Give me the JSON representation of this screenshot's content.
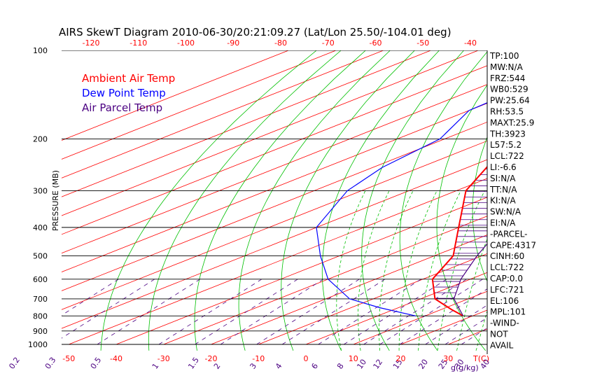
{
  "chart_data": {
    "type": "line",
    "subtype": "skew-t log-p",
    "title": "AIRS SkewT Diagram 2010-06-30/20:21:09.27 (Lat/Lon 25.50/-104.01 deg)",
    "ylabel": "PRESSURE (MB)",
    "xlabel": "T(C)",
    "mixing_ratio_unit": "g(g/kg)",
    "legend": [
      "Ambient Air Temp",
      "Dew Point Temp",
      "Air Parcel Temp"
    ],
    "legend_colors": [
      "#ff0000",
      "#0000ff",
      "#4b0082"
    ],
    "legend_position": "top-left",
    "pressure_levels": [
      100,
      200,
      300,
      400,
      500,
      600,
      700,
      800,
      900,
      1000
    ],
    "bottom_temp_ticks": [
      -50,
      -40,
      -30,
      -20,
      -10,
      0,
      10,
      20,
      30
    ],
    "top_temp_ticks": [
      -120,
      -110,
      -100,
      -90,
      -80,
      -70,
      -60,
      -50,
      -40
    ],
    "mixing_ratio_labels": [
      "0.1",
      "0.2",
      "0.3",
      "0.5",
      "1",
      "1.5",
      "2",
      "3",
      "4",
      "6",
      "8",
      "10",
      "12",
      "15",
      "20",
      "25",
      "30",
      "40"
    ],
    "series": [
      {
        "name": "Ambient Air Temp",
        "pressure": [
          100,
          130,
          160,
          200,
          250,
          300,
          400,
          500,
          600,
          700,
          760,
          800
        ],
        "temp": [
          -79,
          -80,
          -79,
          -66,
          -56,
          -48,
          -30,
          -16,
          -8,
          3,
          12,
          18
        ]
      },
      {
        "name": "Dew Point Temp",
        "pressure": [
          100,
          160,
          200,
          250,
          300,
          400,
          500,
          600,
          700,
          750,
          800
        ],
        "temp": [
          -92,
          -90,
          -81,
          -78,
          -73,
          -60,
          -44,
          -30,
          -15,
          -4,
          8
        ]
      },
      {
        "name": "Air Parcel Temp",
        "pressure": [
          100,
          130,
          160,
          200,
          250,
          300,
          400,
          500,
          600,
          700,
          800
        ],
        "temp": [
          -81,
          -70,
          -60,
          -51,
          -42,
          -33,
          -21,
          -11,
          -2,
          7,
          18
        ]
      }
    ]
  },
  "indices": [
    "TP:100",
    "MW:N/A",
    "FRZ:544",
    "WB0:529",
    "PW:25.64",
    "RH:53.5",
    "MAXT:25.9",
    "TH:3923",
    "L57:5.2",
    "LCL:722",
    "LI:-6.6",
    "SI:N/A",
    "TT:N/A",
    "KI:N/A",
    "SW:N/A",
    "EI:N/A",
    "-PARCEL-",
    "CAPE:4317",
    "CINH:60",
    "LCL:722",
    "CAP:0.0",
    "LFC:721",
    "EL:106",
    "MPL:101",
    "-WIND-",
    "NOT",
    "AVAIL"
  ]
}
